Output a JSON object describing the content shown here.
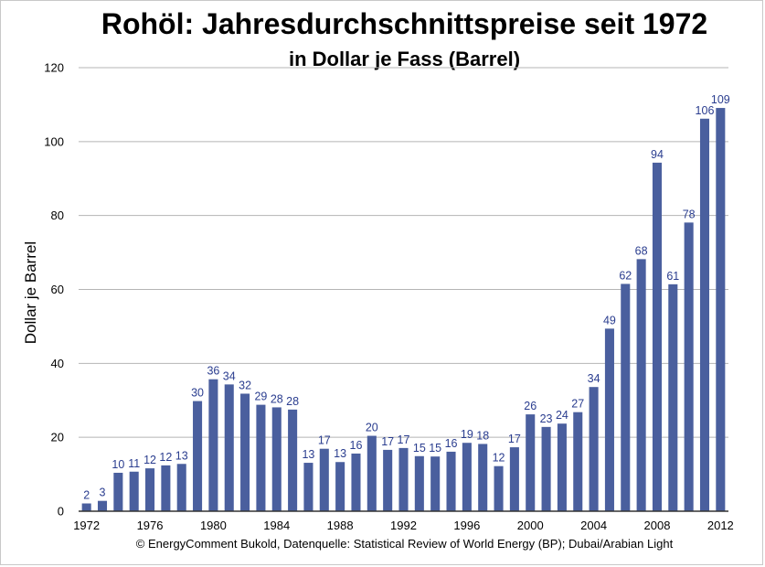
{
  "chart_data": {
    "type": "bar",
    "title": "Rohöl: Jahresdurchschnittspreise seit 1972",
    "subtitle": "in Dollar je Fass (Barrel)",
    "xlabel": "",
    "ylabel": "Dollar je Barrel",
    "source": "© EnergyComment Bukold, Datenquelle: Statistical Review of World Energy (BP); Dubai/Arabian Light",
    "ylim": [
      0,
      120
    ],
    "yticks": [
      0,
      20,
      40,
      60,
      80,
      100,
      120
    ],
    "xtick_labels": [
      "1972",
      "1976",
      "1980",
      "1984",
      "1988",
      "1992",
      "1996",
      "2000",
      "2004",
      "2008",
      "2012"
    ],
    "grid": true,
    "bar_color": "#4a5f9e",
    "label_color": "#2a3d8f",
    "categories": [
      "1972",
      "1973",
      "1974",
      "1975",
      "1976",
      "1977",
      "1978",
      "1979",
      "1980",
      "1981",
      "1982",
      "1983",
      "1984",
      "1985",
      "1986",
      "1987",
      "1988",
      "1989",
      "1990",
      "1991",
      "1992",
      "1993",
      "1994",
      "1995",
      "1996",
      "1997",
      "1998",
      "1999",
      "2000",
      "2001",
      "2002",
      "2003",
      "2004",
      "2005",
      "2006",
      "2007",
      "2008",
      "2009",
      "2010",
      "2011",
      "2012"
    ],
    "values": [
      2.1,
      2.8,
      10.4,
      10.7,
      11.6,
      12.4,
      12.8,
      29.8,
      35.7,
      34.3,
      31.8,
      28.8,
      28.1,
      27.5,
      13.1,
      16.9,
      13.3,
      15.6,
      20.4,
      16.6,
      17.1,
      14.9,
      14.8,
      16.1,
      18.5,
      18.2,
      12.2,
      17.3,
      26.2,
      22.8,
      23.7,
      26.8,
      33.6,
      49.4,
      61.5,
      68.2,
      94.3,
      61.4,
      78.1,
      106.2,
      109.1
    ],
    "value_labels": [
      "2",
      "3",
      "10",
      "11",
      "12",
      "12",
      "13",
      "30",
      "36",
      "34",
      "32",
      "29",
      "28",
      "28",
      "13",
      "17",
      "13",
      "16",
      "20",
      "17",
      "17",
      "15",
      "15",
      "16",
      "19",
      "18",
      "12",
      "17",
      "26",
      "23",
      "24",
      "27",
      "34",
      "49",
      "62",
      "68",
      "94",
      "61",
      "78",
      "106",
      "109"
    ]
  }
}
